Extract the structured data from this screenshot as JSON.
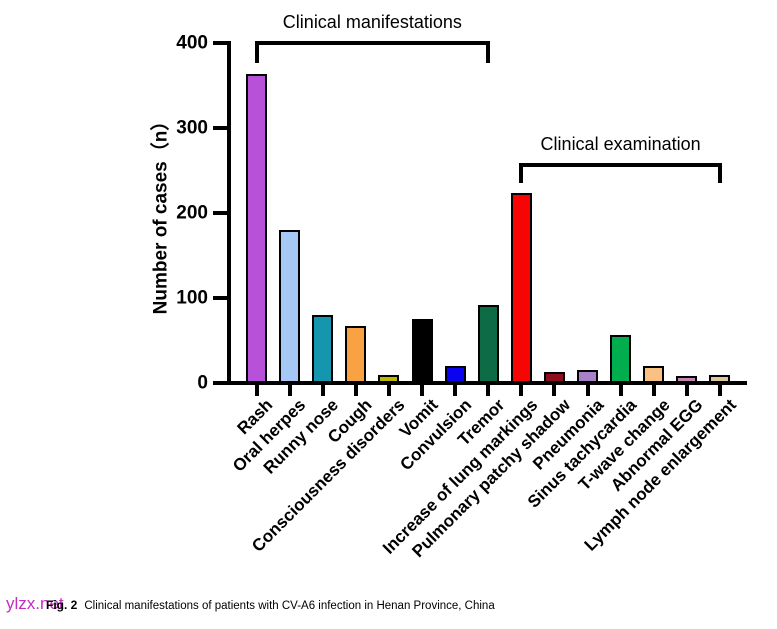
{
  "watermark": {
    "text": "ylzx.net",
    "color": "#c32cc3"
  },
  "caption": {
    "label": "Fig. 2",
    "text": "Clinical manifestations of patients with CV-A6 infection in Henan Province, China"
  },
  "chart_data": {
    "type": "bar",
    "title": "",
    "xlabel": "",
    "ylabel": "Number of cases（n）",
    "ylim": [
      0,
      400
    ],
    "yticks": [
      0,
      100,
      200,
      300,
      400
    ],
    "grid": false,
    "legend": "none",
    "categories": [
      "Rash",
      "Oral herpes",
      "Runny nose",
      "Cough",
      "Consciousness disorders",
      "Vomit",
      "Convulsion",
      "Tremor",
      "Increase of lung markings",
      "Pulmonary patchy shadow",
      "Pneumonia",
      "Sinus tachycardia",
      "T-wave change",
      "Abnormal EGG",
      "Lymph node enlargement"
    ],
    "values": [
      363,
      180,
      80,
      67,
      9,
      75,
      20,
      92,
      223,
      13,
      15,
      57,
      20,
      8,
      9
    ],
    "bar_colors": [
      "#b751d9",
      "#a6c8f5",
      "#1596ae",
      "#f9a243",
      "#bfb800",
      "#000000",
      "#0903f0",
      "#0d6b45",
      "#f70505",
      "#8e0e1c",
      "#a881c9",
      "#00ad4f",
      "#fbc183",
      "#c385b2",
      "#dfc6a0"
    ],
    "bar_edge_color": "#000000",
    "group_brackets": [
      {
        "label": "Clinical manifestations",
        "from": 0,
        "to": 7,
        "y": 41,
        "drop": 22
      },
      {
        "label": "Clinical examination",
        "from": 8,
        "to": 14,
        "y": 163,
        "drop": 20
      }
    ]
  }
}
